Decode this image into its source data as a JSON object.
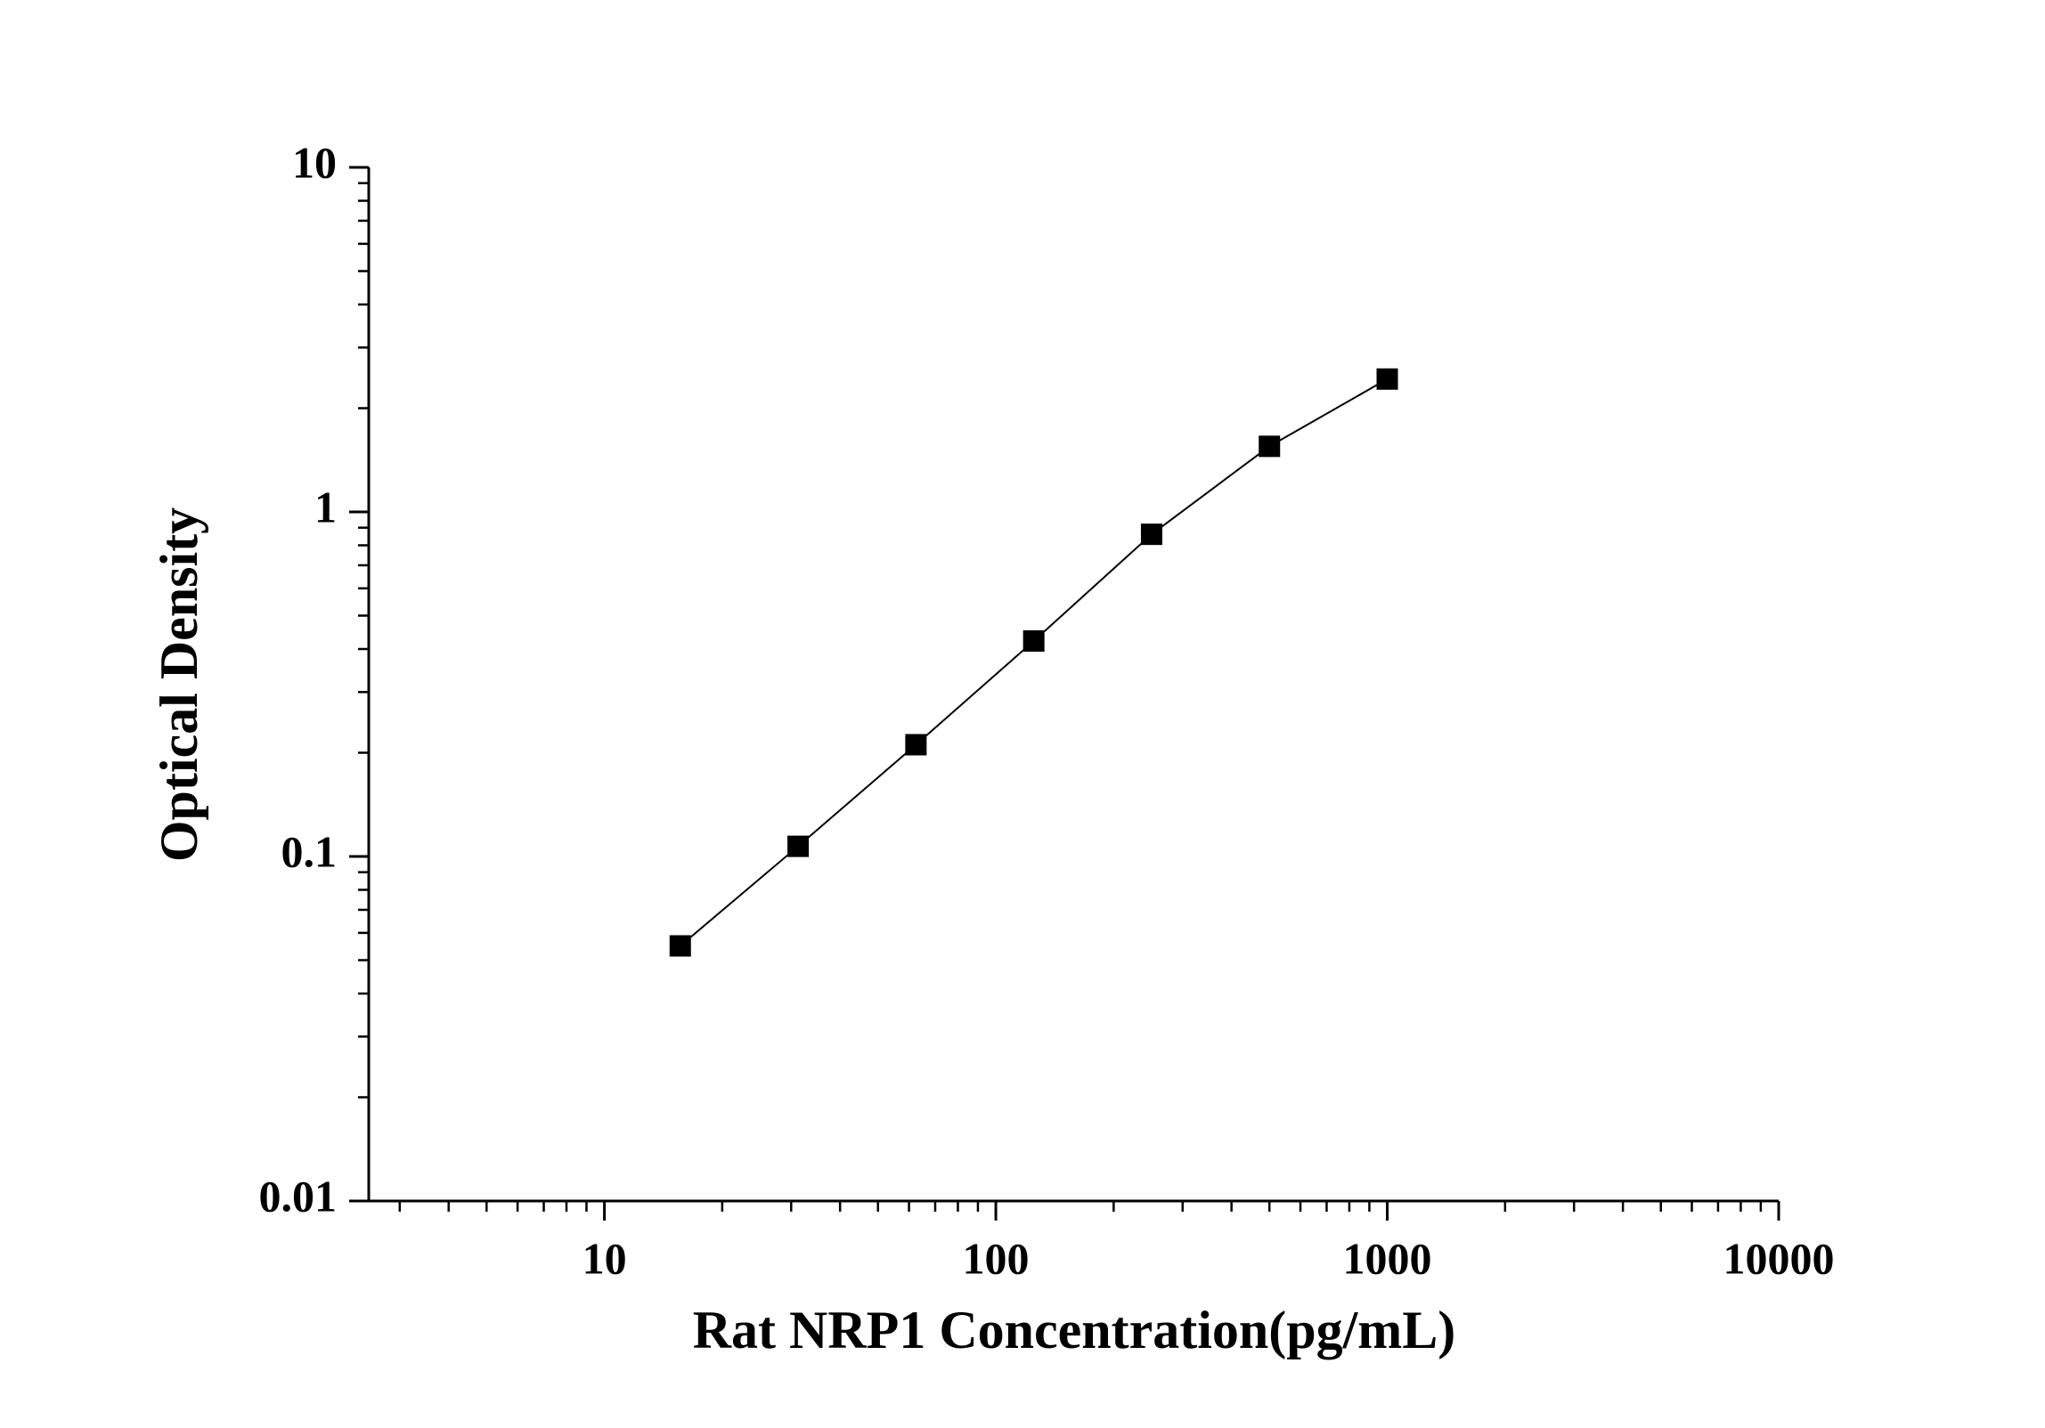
{
  "chart_data": {
    "type": "line",
    "x_label": "Rat NRP1 Concentration(pg/mL)",
    "y_label": "Optical Density",
    "x_log": true,
    "y_log": true,
    "xlim": [
      2.5,
      10000
    ],
    "ylim": [
      0.01,
      10
    ],
    "xticks": [
      10,
      100,
      1000,
      10000
    ],
    "yticks": [
      0.01,
      0.1,
      1,
      10
    ],
    "x": [
      15.625,
      31.25,
      62.5,
      125,
      250,
      500,
      1000
    ],
    "series": [
      {
        "color": "#000000",
        "marker": "square",
        "values": [
          0.055,
          0.107,
          0.211,
          0.422,
          0.861,
          1.55,
          2.43
        ]
      }
    ]
  }
}
